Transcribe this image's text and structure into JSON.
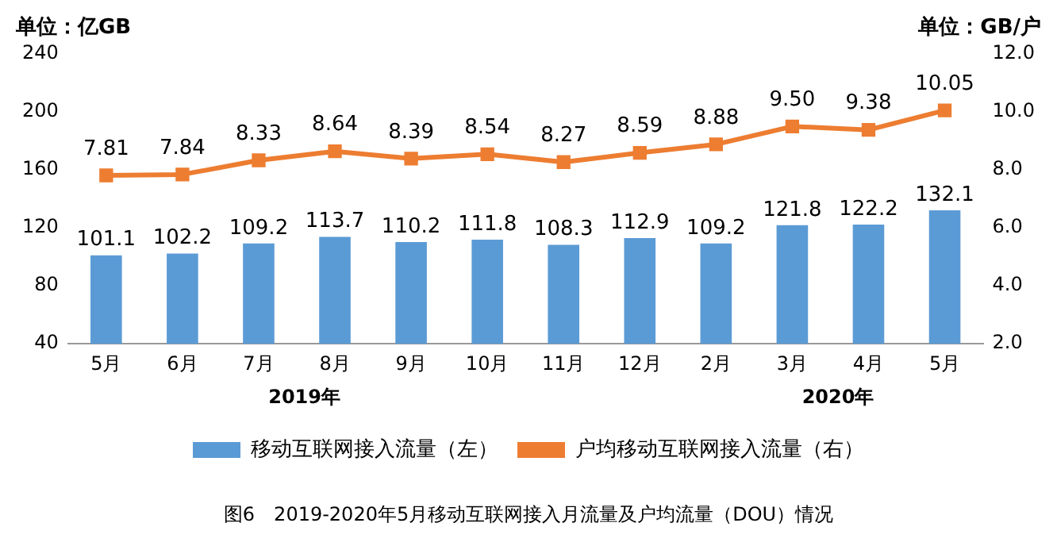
{
  "chart_data": {
    "type": "bar",
    "ylabel": "单位：亿GB",
    "y2label": "单位：GB/户",
    "categories": [
      "5月",
      "6月",
      "7月",
      "8月",
      "9月",
      "10月",
      "11月",
      "12月",
      "2月",
      "3月",
      "4月",
      "5月"
    ],
    "series": [
      {
        "name": "移动互联网接入流量（左）",
        "color": "#5b9bd5",
        "values": [
          101.1,
          102.2,
          109.2,
          113.7,
          110.2,
          111.8,
          108.3,
          112.9,
          109.2,
          121.8,
          122.2,
          132.1
        ],
        "value_labels": [
          "101.1",
          "102.2",
          "109.2",
          "113.7",
          "110.2",
          "111.8",
          "108.3",
          "112.9",
          "109.2",
          "121.8",
          "122.2",
          "132.1"
        ]
      },
      {
        "name": "户均移动互联网接入流量（右）",
        "type": "line",
        "axis": "y2",
        "color": "#ed7d31",
        "marker": "square",
        "values": [
          7.81,
          7.84,
          8.33,
          8.64,
          8.39,
          8.54,
          8.27,
          8.59,
          8.88,
          9.5,
          9.38,
          10.05
        ],
        "value_labels": [
          "7.81",
          "7.84",
          "8.33",
          "8.64",
          "8.39",
          "8.54",
          "8.27",
          "8.59",
          "8.88",
          "9.50",
          "9.38",
          "10.05"
        ]
      }
    ],
    "ylim": [
      40,
      240
    ],
    "yticks": [
      40,
      80,
      120,
      160,
      200,
      240
    ],
    "y2lim": [
      2,
      12
    ],
    "y2ticks": [
      {
        "value": 2,
        "label": "2.0"
      },
      {
        "value": 4,
        "label": "4.0"
      },
      {
        "value": 6,
        "label": "6.0"
      },
      {
        "value": 8,
        "label": "8.0"
      },
      {
        "value": 10,
        "label": "10.0"
      },
      {
        "value": 12,
        "label": "12.0"
      }
    ],
    "grid": false,
    "legend": "bottom",
    "annotations": [
      "2019年",
      "2020年",
      "图6　2019-2020年5月移动互联网接入月流量及户均流量（DOU）情况"
    ]
  }
}
